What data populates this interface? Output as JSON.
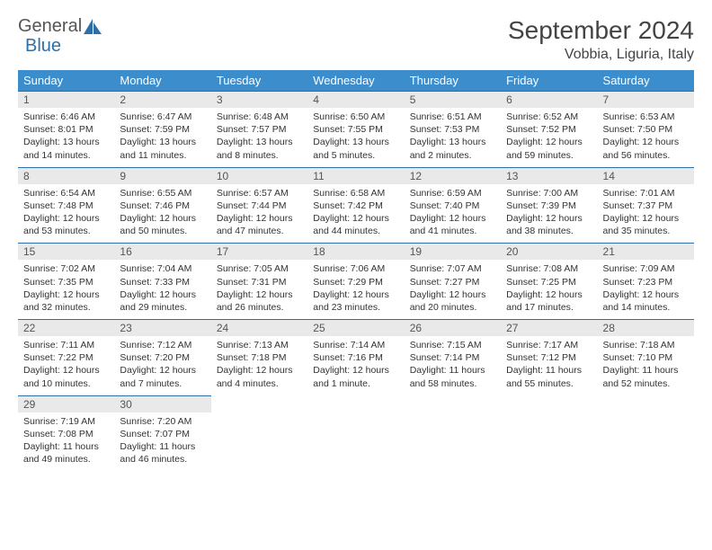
{
  "brand": {
    "part1": "General",
    "part2": "Blue"
  },
  "title": "September 2024",
  "location": "Vobbia, Liguria, Italy",
  "colors": {
    "header_bg": "#3c8dcc",
    "row_divider": "#2f6fa8",
    "daynum_bg": "#e9e9e9",
    "text": "#333333",
    "brand_gray": "#555555",
    "brand_blue": "#2f6fa8"
  },
  "weekdays": [
    "Sunday",
    "Monday",
    "Tuesday",
    "Wednesday",
    "Thursday",
    "Friday",
    "Saturday"
  ],
  "weeks": [
    [
      {
        "n": "1",
        "sr": "Sunrise: 6:46 AM",
        "ss": "Sunset: 8:01 PM",
        "dl": "Daylight: 13 hours and 14 minutes."
      },
      {
        "n": "2",
        "sr": "Sunrise: 6:47 AM",
        "ss": "Sunset: 7:59 PM",
        "dl": "Daylight: 13 hours and 11 minutes."
      },
      {
        "n": "3",
        "sr": "Sunrise: 6:48 AM",
        "ss": "Sunset: 7:57 PM",
        "dl": "Daylight: 13 hours and 8 minutes."
      },
      {
        "n": "4",
        "sr": "Sunrise: 6:50 AM",
        "ss": "Sunset: 7:55 PM",
        "dl": "Daylight: 13 hours and 5 minutes."
      },
      {
        "n": "5",
        "sr": "Sunrise: 6:51 AM",
        "ss": "Sunset: 7:53 PM",
        "dl": "Daylight: 13 hours and 2 minutes."
      },
      {
        "n": "6",
        "sr": "Sunrise: 6:52 AM",
        "ss": "Sunset: 7:52 PM",
        "dl": "Daylight: 12 hours and 59 minutes."
      },
      {
        "n": "7",
        "sr": "Sunrise: 6:53 AM",
        "ss": "Sunset: 7:50 PM",
        "dl": "Daylight: 12 hours and 56 minutes."
      }
    ],
    [
      {
        "n": "8",
        "sr": "Sunrise: 6:54 AM",
        "ss": "Sunset: 7:48 PM",
        "dl": "Daylight: 12 hours and 53 minutes."
      },
      {
        "n": "9",
        "sr": "Sunrise: 6:55 AM",
        "ss": "Sunset: 7:46 PM",
        "dl": "Daylight: 12 hours and 50 minutes."
      },
      {
        "n": "10",
        "sr": "Sunrise: 6:57 AM",
        "ss": "Sunset: 7:44 PM",
        "dl": "Daylight: 12 hours and 47 minutes."
      },
      {
        "n": "11",
        "sr": "Sunrise: 6:58 AM",
        "ss": "Sunset: 7:42 PM",
        "dl": "Daylight: 12 hours and 44 minutes."
      },
      {
        "n": "12",
        "sr": "Sunrise: 6:59 AM",
        "ss": "Sunset: 7:40 PM",
        "dl": "Daylight: 12 hours and 41 minutes."
      },
      {
        "n": "13",
        "sr": "Sunrise: 7:00 AM",
        "ss": "Sunset: 7:39 PM",
        "dl": "Daylight: 12 hours and 38 minutes."
      },
      {
        "n": "14",
        "sr": "Sunrise: 7:01 AM",
        "ss": "Sunset: 7:37 PM",
        "dl": "Daylight: 12 hours and 35 minutes."
      }
    ],
    [
      {
        "n": "15",
        "sr": "Sunrise: 7:02 AM",
        "ss": "Sunset: 7:35 PM",
        "dl": "Daylight: 12 hours and 32 minutes."
      },
      {
        "n": "16",
        "sr": "Sunrise: 7:04 AM",
        "ss": "Sunset: 7:33 PM",
        "dl": "Daylight: 12 hours and 29 minutes."
      },
      {
        "n": "17",
        "sr": "Sunrise: 7:05 AM",
        "ss": "Sunset: 7:31 PM",
        "dl": "Daylight: 12 hours and 26 minutes."
      },
      {
        "n": "18",
        "sr": "Sunrise: 7:06 AM",
        "ss": "Sunset: 7:29 PM",
        "dl": "Daylight: 12 hours and 23 minutes."
      },
      {
        "n": "19",
        "sr": "Sunrise: 7:07 AM",
        "ss": "Sunset: 7:27 PM",
        "dl": "Daylight: 12 hours and 20 minutes."
      },
      {
        "n": "20",
        "sr": "Sunrise: 7:08 AM",
        "ss": "Sunset: 7:25 PM",
        "dl": "Daylight: 12 hours and 17 minutes."
      },
      {
        "n": "21",
        "sr": "Sunrise: 7:09 AM",
        "ss": "Sunset: 7:23 PM",
        "dl": "Daylight: 12 hours and 14 minutes."
      }
    ],
    [
      {
        "n": "22",
        "sr": "Sunrise: 7:11 AM",
        "ss": "Sunset: 7:22 PM",
        "dl": "Daylight: 12 hours and 10 minutes."
      },
      {
        "n": "23",
        "sr": "Sunrise: 7:12 AM",
        "ss": "Sunset: 7:20 PM",
        "dl": "Daylight: 12 hours and 7 minutes."
      },
      {
        "n": "24",
        "sr": "Sunrise: 7:13 AM",
        "ss": "Sunset: 7:18 PM",
        "dl": "Daylight: 12 hours and 4 minutes."
      },
      {
        "n": "25",
        "sr": "Sunrise: 7:14 AM",
        "ss": "Sunset: 7:16 PM",
        "dl": "Daylight: 12 hours and 1 minute."
      },
      {
        "n": "26",
        "sr": "Sunrise: 7:15 AM",
        "ss": "Sunset: 7:14 PM",
        "dl": "Daylight: 11 hours and 58 minutes."
      },
      {
        "n": "27",
        "sr": "Sunrise: 7:17 AM",
        "ss": "Sunset: 7:12 PM",
        "dl": "Daylight: 11 hours and 55 minutes."
      },
      {
        "n": "28",
        "sr": "Sunrise: 7:18 AM",
        "ss": "Sunset: 7:10 PM",
        "dl": "Daylight: 11 hours and 52 minutes."
      }
    ],
    [
      {
        "n": "29",
        "sr": "Sunrise: 7:19 AM",
        "ss": "Sunset: 7:08 PM",
        "dl": "Daylight: 11 hours and 49 minutes."
      },
      {
        "n": "30",
        "sr": "Sunrise: 7:20 AM",
        "ss": "Sunset: 7:07 PM",
        "dl": "Daylight: 11 hours and 46 minutes."
      },
      null,
      null,
      null,
      null,
      null
    ]
  ]
}
